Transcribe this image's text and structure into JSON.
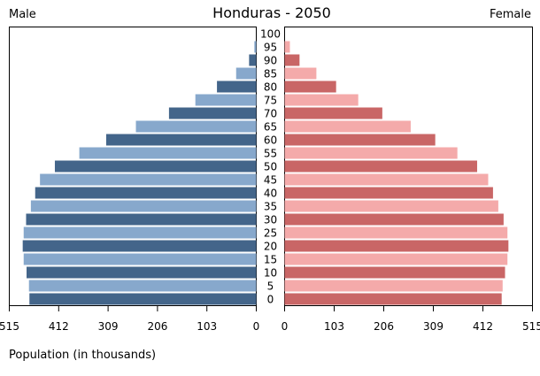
{
  "chart_data": {
    "type": "bar",
    "title": "Honduras - 2050",
    "left_label": "Male",
    "right_label": "Female",
    "xlabel": "Population (in thousands)",
    "xlim": [
      0,
      515
    ],
    "ticks": [
      515,
      412,
      309,
      206,
      103,
      0
    ],
    "categories": [
      "0",
      "5",
      "10",
      "15",
      "20",
      "25",
      "30",
      "35",
      "40",
      "45",
      "50",
      "55",
      "60",
      "65",
      "70",
      "75",
      "80",
      "85",
      "90",
      "95",
      "100"
    ],
    "series": [
      {
        "name": "Male",
        "color_dark": "#43658a",
        "color_light": "#87a8cc",
        "values": [
          473,
          474,
          479,
          485,
          487,
          485,
          480,
          470,
          461,
          451,
          420,
          369,
          313,
          251,
          182,
          127,
          82,
          42,
          15,
          4,
          0
        ]
      },
      {
        "name": "Female",
        "color_dark": "#c96666",
        "color_light": "#f4aaaa",
        "values": [
          451,
          453,
          458,
          463,
          465,
          463,
          455,
          444,
          433,
          423,
          400,
          359,
          313,
          262,
          203,
          153,
          107,
          66,
          31,
          11,
          0
        ]
      }
    ]
  }
}
